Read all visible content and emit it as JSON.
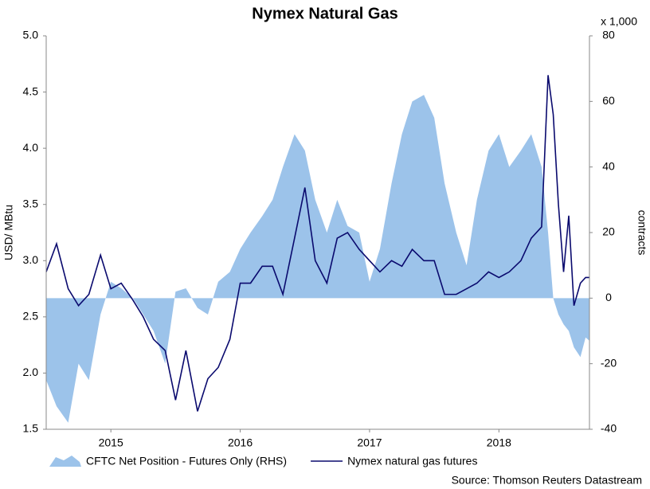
{
  "chart_data": {
    "type": "line-area-dual",
    "title": "Nymex Natural Gas",
    "y_label": "USD/ MBtu",
    "y2_label": "contracts",
    "y2_unit_note": "x 1,000",
    "source": "Source: Thomson Reuters Datastream",
    "x": [
      2015,
      2015.08,
      2015.17,
      2015.25,
      2015.33,
      2015.42,
      2015.5,
      2015.58,
      2015.67,
      2015.75,
      2015.83,
      2015.92,
      2016,
      2016.08,
      2016.17,
      2016.25,
      2016.33,
      2016.42,
      2016.5,
      2016.58,
      2016.67,
      2016.75,
      2016.83,
      2016.92,
      2017,
      2017.08,
      2017.17,
      2017.25,
      2017.33,
      2017.42,
      2017.5,
      2017.58,
      2017.67,
      2017.75,
      2017.83,
      2017.92,
      2018,
      2018.08,
      2018.17,
      2018.25,
      2018.33,
      2018.42,
      2018.5,
      2018.58,
      2018.67,
      2018.75,
      2018.83,
      2018.88,
      2018.92,
      2018.96,
      2019,
      2019.04,
      2019.08,
      2019.13,
      2019.17,
      2019.2
    ],
    "series": [
      {
        "name": "CFTC Net Position - Futures Only (RHS)",
        "kind": "area",
        "axis": "y2",
        "color": "#9cc3ea",
        "values": [
          -25,
          -33,
          -38,
          -20,
          -25,
          -5,
          5,
          3,
          0,
          -5,
          -10,
          -20,
          2,
          3,
          -3,
          -5,
          5,
          8,
          15,
          20,
          25,
          30,
          40,
          50,
          45,
          30,
          20,
          30,
          22,
          20,
          5,
          15,
          35,
          50,
          60,
          62,
          55,
          35,
          20,
          10,
          30,
          45,
          50,
          40,
          45,
          50,
          40,
          20,
          0,
          -5,
          -8,
          -10,
          -15,
          -18,
          -12,
          -13
        ]
      },
      {
        "name": "Nymex natural gas futures",
        "kind": "line",
        "axis": "y",
        "color": "#0a0a6e",
        "values": [
          2.9,
          3.15,
          2.75,
          2.6,
          2.7,
          3.05,
          2.75,
          2.8,
          2.65,
          2.5,
          2.3,
          2.2,
          1.76,
          2.2,
          1.66,
          1.95,
          2.05,
          2.3,
          2.8,
          2.8,
          2.95,
          2.95,
          2.7,
          3.2,
          3.65,
          3.0,
          2.8,
          3.2,
          3.25,
          3.1,
          3.0,
          2.9,
          3.0,
          2.95,
          3.1,
          3.0,
          3.0,
          2.7,
          2.7,
          2.75,
          2.8,
          2.9,
          2.85,
          2.9,
          3.0,
          3.2,
          3.3,
          4.65,
          4.3,
          3.5,
          2.9,
          3.4,
          2.6,
          2.8,
          2.85,
          2.85
        ]
      }
    ],
    "xlim": [
      2015,
      2019.2
    ],
    "xticks": [
      {
        "value": 2015.5,
        "label": "2015"
      },
      {
        "value": 2016.5,
        "label": "2016"
      },
      {
        "value": 2017.5,
        "label": "2017"
      },
      {
        "value": 2018.5,
        "label": "2018"
      }
    ],
    "ylim": [
      1.5,
      5
    ],
    "yticks": [
      1.5,
      {
        "value": 2,
        "label": "2.0"
      },
      2.5,
      {
        "value": 3,
        "label": "3.0"
      },
      3.5,
      {
        "value": 4,
        "label": "4.0"
      },
      4.5,
      {
        "value": 5,
        "label": "5.0"
      }
    ],
    "y2lim": [
      -40,
      80
    ],
    "y2ticks": [
      -40,
      -20,
      0,
      20,
      40,
      60,
      80
    ]
  }
}
